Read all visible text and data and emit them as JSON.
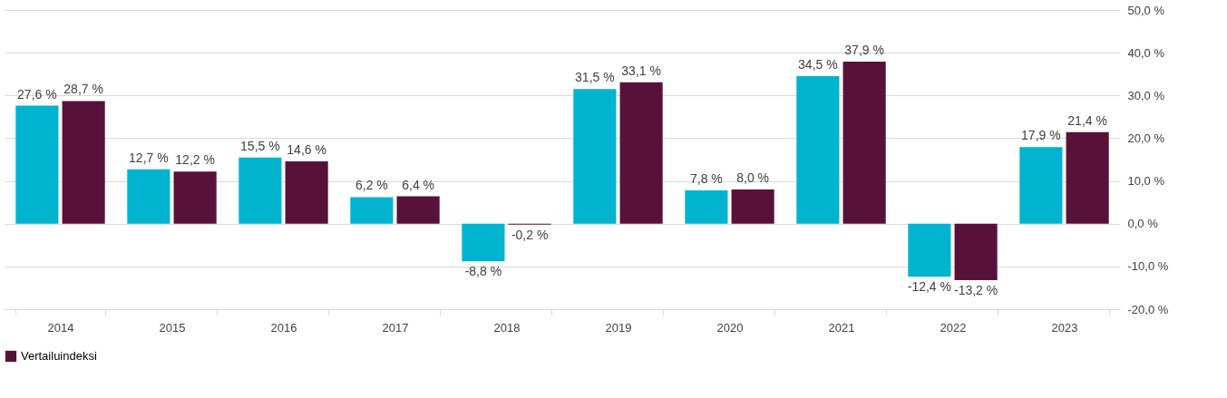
{
  "chart_data": {
    "type": "bar",
    "categories": [
      "2014",
      "2015",
      "2016",
      "2017",
      "2018",
      "2019",
      "2020",
      "2021",
      "2022",
      "2023"
    ],
    "series": [
      {
        "color": "#00b4d0",
        "values": [
          27.6,
          12.7,
          15.5,
          6.2,
          -8.8,
          31.5,
          7.8,
          34.5,
          -12.4,
          17.9
        ],
        "value_labels": [
          "27,6 %",
          "12,7 %",
          "15,5 %",
          "6,2 %",
          "-8,8 %",
          "31,5 %",
          "7,8 %",
          "34,5 %",
          "-12,4 %",
          "17,9 %"
        ]
      },
      {
        "name": "Vertailuindeksi",
        "color": "#58123a",
        "values": [
          28.7,
          12.2,
          14.6,
          6.4,
          -0.2,
          33.1,
          8.0,
          37.9,
          -13.2,
          21.4
        ],
        "value_labels": [
          "28,7 %",
          "12,2 %",
          "14,6 %",
          "6,4 %",
          "-0,2 %",
          "33,1 %",
          "8,0 %",
          "37,9 %",
          "-13,2 %",
          "21,4 %"
        ]
      }
    ],
    "ylim": [
      -20,
      50
    ],
    "yticks": [
      {
        "value": -20,
        "label": "-20,0 %"
      },
      {
        "value": -10,
        "label": "-10,0 %"
      },
      {
        "value": 0,
        "label": "0,0 %"
      },
      {
        "value": 10,
        "label": "10,0 %"
      },
      {
        "value": 20,
        "label": "20,0 %"
      },
      {
        "value": 30,
        "label": "30,0 %"
      },
      {
        "value": 40,
        "label": "40,0 %"
      },
      {
        "value": 50,
        "label": "50,0 %"
      }
    ],
    "grid": "y",
    "legend": "bottom"
  }
}
